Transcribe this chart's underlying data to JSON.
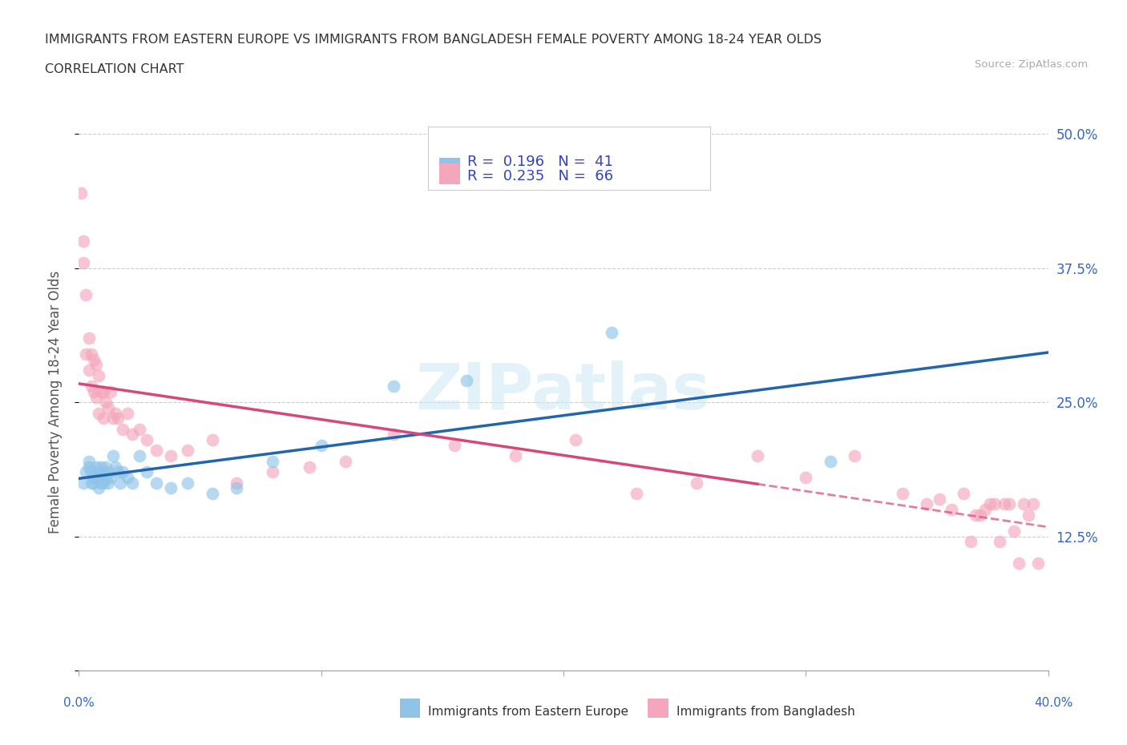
{
  "title_line1": "IMMIGRANTS FROM EASTERN EUROPE VS IMMIGRANTS FROM BANGLADESH FEMALE POVERTY AMONG 18-24 YEAR OLDS",
  "title_line2": "CORRELATION CHART",
  "source_text": "Source: ZipAtlas.com",
  "ylabel": "Female Poverty Among 18-24 Year Olds",
  "xlim": [
    0.0,
    0.4
  ],
  "ylim": [
    0.0,
    0.5
  ],
  "xticks": [
    0.0,
    0.1,
    0.2,
    0.3,
    0.4
  ],
  "xticklabels": [
    "0.0%",
    "",
    "",
    "",
    "40.0%"
  ],
  "yticks": [
    0.0,
    0.125,
    0.25,
    0.375,
    0.5
  ],
  "yticklabels_right": [
    "",
    "12.5%",
    "25.0%",
    "37.5%",
    "50.0%"
  ],
  "legend_text1": "R =  0.196   N =  41",
  "legend_text2": "R =  0.235   N =  66",
  "color_blue": "#8fc4e8",
  "color_pink": "#f4a7bc",
  "trendline_blue": "#2166ac",
  "trendline_pink": "#d6487a",
  "watermark_text": "ZIPatlas",
  "legend_label1": "Immigrants from Eastern Europe",
  "legend_label2": "Immigrants from Bangladesh",
  "eastern_europe_x": [
    0.002,
    0.003,
    0.004,
    0.004,
    0.005,
    0.005,
    0.006,
    0.006,
    0.007,
    0.007,
    0.008,
    0.008,
    0.009,
    0.009,
    0.01,
    0.01,
    0.011,
    0.011,
    0.012,
    0.012,
    0.013,
    0.014,
    0.015,
    0.016,
    0.017,
    0.018,
    0.02,
    0.022,
    0.025,
    0.028,
    0.032,
    0.038,
    0.045,
    0.055,
    0.065,
    0.08,
    0.1,
    0.13,
    0.16,
    0.22,
    0.31
  ],
  "eastern_europe_y": [
    0.175,
    0.185,
    0.19,
    0.195,
    0.175,
    0.185,
    0.18,
    0.175,
    0.19,
    0.18,
    0.185,
    0.17,
    0.19,
    0.175,
    0.185,
    0.175,
    0.19,
    0.18,
    0.185,
    0.175,
    0.18,
    0.2,
    0.19,
    0.185,
    0.175,
    0.185,
    0.18,
    0.175,
    0.2,
    0.185,
    0.175,
    0.17,
    0.175,
    0.165,
    0.17,
    0.195,
    0.21,
    0.265,
    0.27,
    0.315,
    0.195
  ],
  "bangladesh_x": [
    0.001,
    0.002,
    0.002,
    0.003,
    0.003,
    0.004,
    0.004,
    0.005,
    0.005,
    0.006,
    0.006,
    0.007,
    0.007,
    0.008,
    0.008,
    0.009,
    0.01,
    0.01,
    0.011,
    0.012,
    0.013,
    0.014,
    0.015,
    0.016,
    0.018,
    0.02,
    0.022,
    0.025,
    0.028,
    0.032,
    0.038,
    0.045,
    0.055,
    0.065,
    0.08,
    0.095,
    0.11,
    0.13,
    0.155,
    0.18,
    0.205,
    0.23,
    0.255,
    0.28,
    0.3,
    0.32,
    0.34,
    0.35,
    0.355,
    0.36,
    0.365,
    0.368,
    0.37,
    0.372,
    0.374,
    0.376,
    0.378,
    0.38,
    0.382,
    0.384,
    0.386,
    0.388,
    0.39,
    0.392,
    0.394,
    0.396
  ],
  "bangladesh_y": [
    0.445,
    0.38,
    0.4,
    0.35,
    0.295,
    0.31,
    0.28,
    0.295,
    0.265,
    0.29,
    0.26,
    0.285,
    0.255,
    0.275,
    0.24,
    0.26,
    0.26,
    0.235,
    0.25,
    0.245,
    0.26,
    0.235,
    0.24,
    0.235,
    0.225,
    0.24,
    0.22,
    0.225,
    0.215,
    0.205,
    0.2,
    0.205,
    0.215,
    0.175,
    0.185,
    0.19,
    0.195,
    0.22,
    0.21,
    0.2,
    0.215,
    0.165,
    0.175,
    0.2,
    0.18,
    0.2,
    0.165,
    0.155,
    0.16,
    0.15,
    0.165,
    0.12,
    0.145,
    0.145,
    0.15,
    0.155,
    0.155,
    0.12,
    0.155,
    0.155,
    0.13,
    0.1,
    0.155,
    0.145,
    0.155,
    0.1
  ]
}
